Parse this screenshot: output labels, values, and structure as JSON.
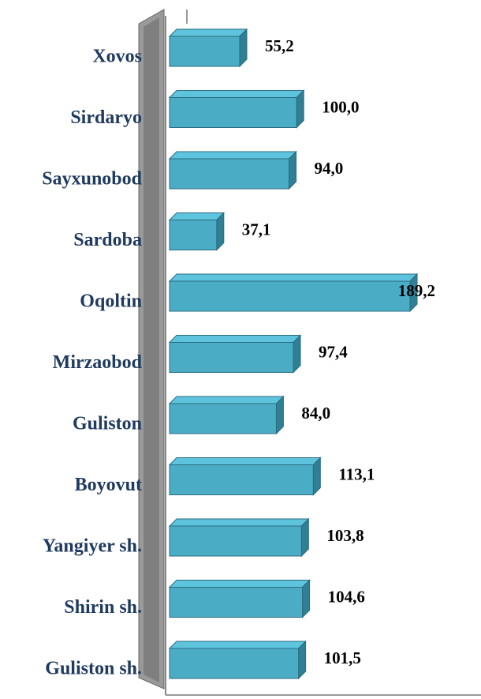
{
  "chart_data": {
    "type": "bar",
    "orientation": "horizontal",
    "color": "#4bacc6",
    "categories": [
      "Xovos",
      "Sirdaryo",
      "Sayxunobod",
      "Sardoba",
      "Oqoltin",
      "Mirzaobod",
      "Guliston",
      "Boyovut",
      "Yangiyer sh.",
      "Shirin sh.",
      "Guliston sh."
    ],
    "values": [
      55.2,
      100.0,
      94.0,
      37.1,
      189.2,
      97.4,
      84.0,
      113.1,
      103.8,
      104.6,
      101.5
    ],
    "value_labels": [
      "55,2",
      "100,0",
      "94,0",
      "37,1",
      "189,2",
      "97,4",
      "84,0",
      "113,1",
      "103,8",
      "104,6",
      "101,5"
    ]
  }
}
